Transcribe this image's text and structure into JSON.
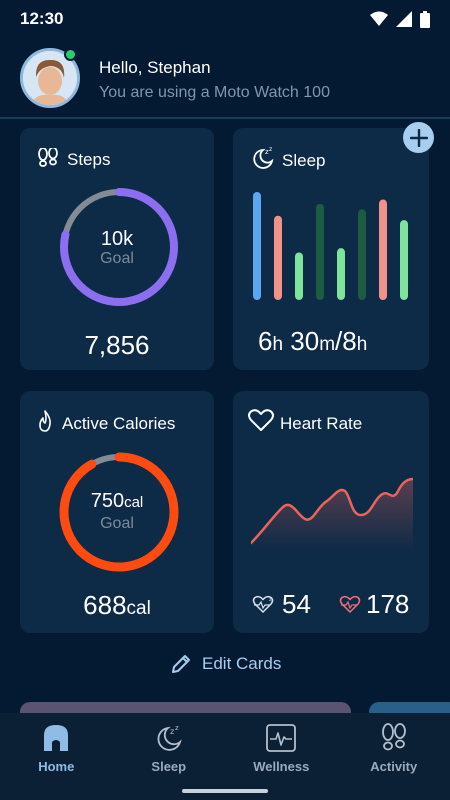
{
  "status": {
    "time": "12:30"
  },
  "header": {
    "greeting": "Hello, Stephan",
    "subtext": "You are using a Moto Watch 100"
  },
  "cards": {
    "steps": {
      "title": "Steps",
      "goal_value": "10k",
      "goal_label": "Goal",
      "value": "7,856",
      "progress": 0.7856
    },
    "sleep": {
      "title": "Sleep",
      "hours": "6",
      "h_unit": "h",
      "minutes": "30",
      "m_unit": "m",
      "goal": "/8",
      "goal_unit": "h",
      "bars": [
        {
          "level": 1.0,
          "color": "#5aa8f0"
        },
        {
          "level": 0.78,
          "color": "#f0918a"
        },
        {
          "level": 0.44,
          "color": "#7fe49b"
        },
        {
          "level": 0.89,
          "color": "#1f5a43"
        },
        {
          "level": 0.48,
          "color": "#7fe49b"
        },
        {
          "level": 0.84,
          "color": "#1f5a43"
        },
        {
          "level": 0.93,
          "color": "#f0918a"
        },
        {
          "level": 0.74,
          "color": "#7fe49b"
        }
      ]
    },
    "calories": {
      "title": "Active Calories",
      "goal_value": "750",
      "goal_unit": "cal",
      "goal_label": "Goal",
      "value": "688",
      "unit": "cal",
      "progress": 0.917
    },
    "heart": {
      "title": "Heart Rate",
      "min": "54",
      "max": "178"
    }
  },
  "actions": {
    "edit_cards": "Edit Cards"
  },
  "nav": [
    {
      "label": "Home",
      "active": true
    },
    {
      "label": "Sleep",
      "active": false
    },
    {
      "label": "Wellness",
      "active": false
    },
    {
      "label": "Activity",
      "active": false
    }
  ],
  "colors": {
    "steps_ring": "#8c6ff0",
    "calories_ring": "#ff4a10",
    "heart_line": "#e9655b"
  }
}
